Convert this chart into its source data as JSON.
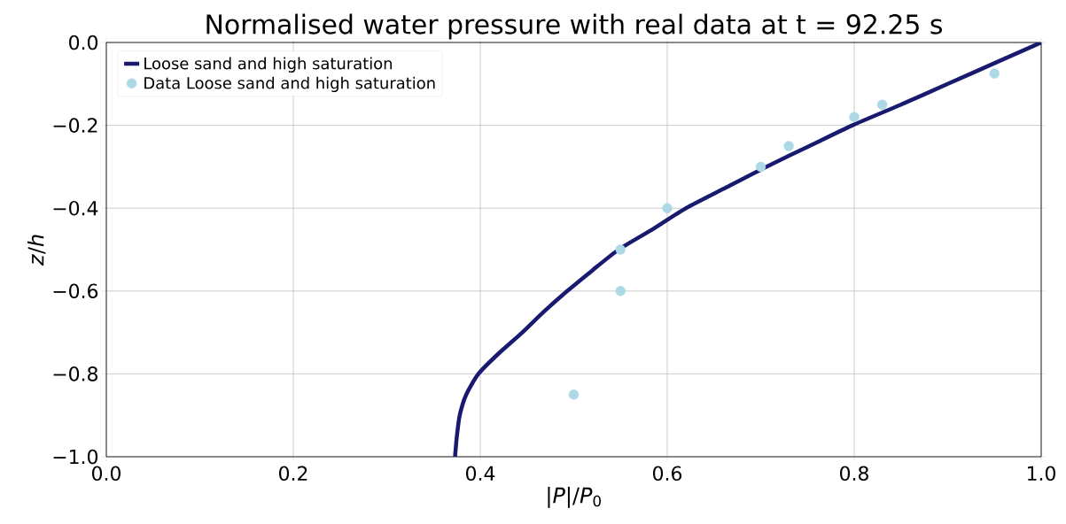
{
  "chart_data": {
    "type": "line",
    "title": "Normalised water pressure with real data at t = 92.25 s",
    "xlabel": "|*P*|/*P*$_{0}$",
    "ylabel": "*z*/*h*",
    "xlim": [
      0,
      1
    ],
    "ylim": [
      -1,
      0
    ],
    "xticks": [
      {
        "value": 0,
        "label": "0.0"
      },
      {
        "value": 0.2,
        "label": "0.2"
      },
      {
        "value": 0.4,
        "label": "0.4"
      },
      {
        "value": 0.6,
        "label": "0.6"
      },
      {
        "value": 0.8,
        "label": "0.8"
      },
      {
        "value": 1,
        "label": "1.0"
      }
    ],
    "yticks": [
      {
        "value": -1,
        "label": "−1.0"
      },
      {
        "value": -0.8,
        "label": "−0.8"
      },
      {
        "value": -0.6,
        "label": "−0.6"
      },
      {
        "value": -0.4,
        "label": "−0.4"
      },
      {
        "value": -0.2,
        "label": "−0.2"
      },
      {
        "value": 0,
        "label": "0.0"
      }
    ],
    "grid": true,
    "legend": "top left",
    "series": [
      {
        "name": "Loose sand and high saturation",
        "marker": "none",
        "color": "#191970",
        "x": [
          0.373,
          0.375,
          0.378,
          0.385,
          0.398,
          0.42,
          0.445,
          0.468,
          0.493,
          0.52,
          0.548,
          0.585,
          0.62,
          0.663,
          0.706,
          0.752,
          0.798,
          0.85,
          0.9,
          0.95,
          1.0
        ],
        "values": [
          -1.0,
          -0.95,
          -0.9,
          -0.85,
          -0.8,
          -0.75,
          -0.7,
          -0.65,
          -0.6,
          -0.55,
          -0.5,
          -0.45,
          -0.4,
          -0.35,
          -0.3,
          -0.25,
          -0.2,
          -0.15,
          -0.1,
          -0.05,
          0.0
        ]
      },
      {
        "name": "Data Loose sand and high saturation",
        "type": "scatter",
        "marker": "circle",
        "color": "#add8e6",
        "x": [
          0.5,
          0.55,
          0.55,
          0.6,
          0.7,
          0.73,
          0.8,
          0.83,
          0.95
        ],
        "values": [
          -0.85,
          -0.6,
          -0.5,
          -0.4,
          -0.3,
          -0.25,
          -0.18,
          -0.15,
          -0.075
        ]
      }
    ]
  }
}
